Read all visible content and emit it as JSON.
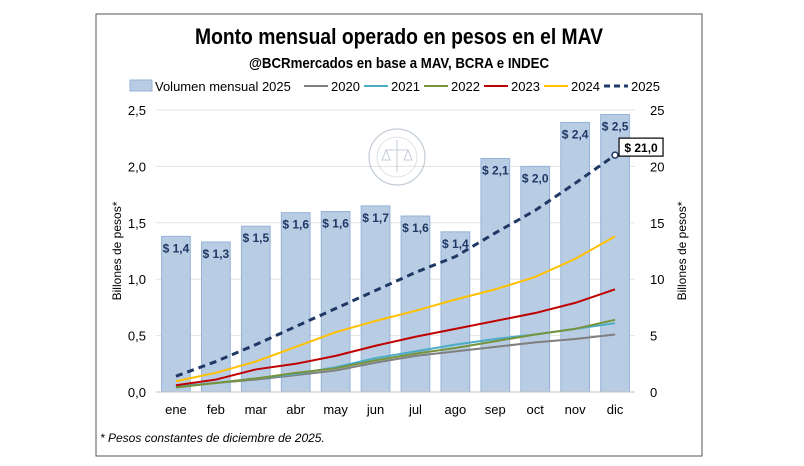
{
  "chart_data": {
    "type": "bar",
    "title": "Monto mensual operado en pesos en el MAV",
    "subtitle": "@BCRmercados en base a MAV, BCRA e INDEC",
    "footnote": "* Pesos constantes de diciembre de 2025.",
    "watermark": "BOLSA DE COMERCIO DE ROSARIO",
    "categories": [
      "ene",
      "feb",
      "mar",
      "abr",
      "may",
      "jun",
      "jul",
      "ago",
      "sep",
      "oct",
      "nov",
      "dic"
    ],
    "ylabel_left": "Billones de pesos*",
    "ylabel_right": "Billones de pesos*",
    "ylim_left": [
      0,
      2.5
    ],
    "ylim_right": [
      0,
      25
    ],
    "yticks_left": [
      "0,0",
      "0,5",
      "1,0",
      "1,5",
      "2,0",
      "2,5"
    ],
    "yticks_right": [
      "0",
      "5",
      "10",
      "15",
      "20",
      "25"
    ],
    "grid": true,
    "legend_placement": "top",
    "bars": {
      "name": "Volumen mensual 2025",
      "axis": "left",
      "color": "#b8cce4",
      "values": [
        1.38,
        1.33,
        1.47,
        1.59,
        1.6,
        1.65,
        1.56,
        1.42,
        2.07,
        2.0,
        2.39,
        2.46
      ],
      "labels": [
        "$ 1,4",
        "$ 1,3",
        "$ 1,5",
        "$ 1,6",
        "$ 1,6",
        "$ 1,7",
        "$ 1,6",
        "$ 1,4",
        "$ 2,1",
        "$ 2,0",
        "$ 2,4",
        "$ 2,5"
      ]
    },
    "series": [
      {
        "name": "2020",
        "axis": "right",
        "color": "#7f7f7f",
        "dashed": false,
        "values": [
          0.5,
          0.8,
          1.1,
          1.5,
          1.9,
          2.6,
          3.2,
          3.6,
          4.0,
          4.4,
          4.7,
          5.1
        ]
      },
      {
        "name": "2021",
        "axis": "right",
        "color": "#4bacc6",
        "dashed": false,
        "values": [
          0.5,
          0.8,
          1.2,
          1.6,
          2.2,
          3.0,
          3.6,
          4.2,
          4.7,
          5.1,
          5.6,
          6.1
        ]
      },
      {
        "name": "2022",
        "axis": "right",
        "color": "#77933c",
        "dashed": false,
        "values": [
          0.4,
          0.8,
          1.2,
          1.7,
          2.1,
          2.8,
          3.4,
          3.9,
          4.5,
          5.1,
          5.6,
          6.4
        ]
      },
      {
        "name": "2023",
        "axis": "right",
        "color": "#c00000",
        "dashed": false,
        "values": [
          0.6,
          1.1,
          2.0,
          2.5,
          3.2,
          4.1,
          4.9,
          5.6,
          6.3,
          7.0,
          7.9,
          9.1
        ]
      },
      {
        "name": "2024",
        "axis": "right",
        "color": "#ffc000",
        "dashed": false,
        "values": [
          0.95,
          1.7,
          2.7,
          4.0,
          5.3,
          6.3,
          7.2,
          8.2,
          9.1,
          10.2,
          11.8,
          13.8
        ]
      },
      {
        "name": "2025",
        "axis": "right",
        "color": "#1f3864",
        "dashed": true,
        "values": [
          1.4,
          2.7,
          4.2,
          5.8,
          7.4,
          9.0,
          10.6,
          12.0,
          14.1,
          16.1,
          18.5,
          21.0
        ]
      }
    ],
    "annotation": "$ 21,0"
  }
}
